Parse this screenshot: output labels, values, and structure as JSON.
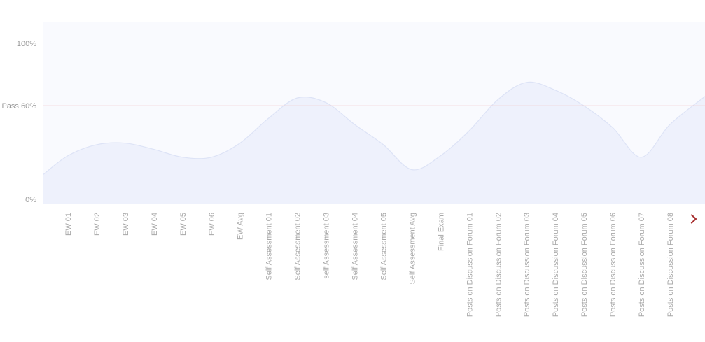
{
  "chart_data": {
    "type": "area",
    "title": "",
    "xlabel": "",
    "ylabel": "",
    "ylim": [
      0,
      100
    ],
    "y_ticks": [
      {
        "value": 100,
        "label": "100%"
      },
      {
        "value": 60,
        "label": "Pass 60%"
      },
      {
        "value": 0,
        "label": "0%"
      }
    ],
    "pass_line": {
      "value": 60,
      "label": "Pass 60%",
      "color": "#f2c4c4"
    },
    "categories": [
      "EW 01",
      "EW 02",
      "EW 03",
      "EW 04",
      "EW 05",
      "EW 06",
      "EW Avg",
      "Self Assessment 01",
      "Self Assessment 02",
      "self Assessment 03",
      "Self Assessment 04",
      "Self Assessment 05",
      "Self Assessment Avg",
      "Final Exam",
      "Posts on Discussion Forum 01",
      "Posts on Discussion Forum 02",
      "Posts on Discussion Forum 03",
      "Posts on Discussion Forum 04",
      "Posts on Discussion Forum 05",
      "Posts on Discussion Forum 06",
      "Posts on Discussion Forum 07",
      "Posts on Discussion Forum 08"
    ],
    "series": [
      {
        "values": [
          28,
          35,
          36,
          32,
          27,
          27,
          36,
          52,
          65,
          62,
          48,
          35,
          19,
          28,
          44,
          64,
          75,
          70,
          60,
          46,
          27,
          48
        ],
        "start_value": 16,
        "end_value": 66,
        "fill_color": "#eef1fc",
        "line_color": "#dde3f6"
      }
    ],
    "grid": false,
    "plot_background": "#f9fafe"
  },
  "navigation": {
    "next_icon": "chevron-right-icon",
    "color": "#a83232"
  }
}
